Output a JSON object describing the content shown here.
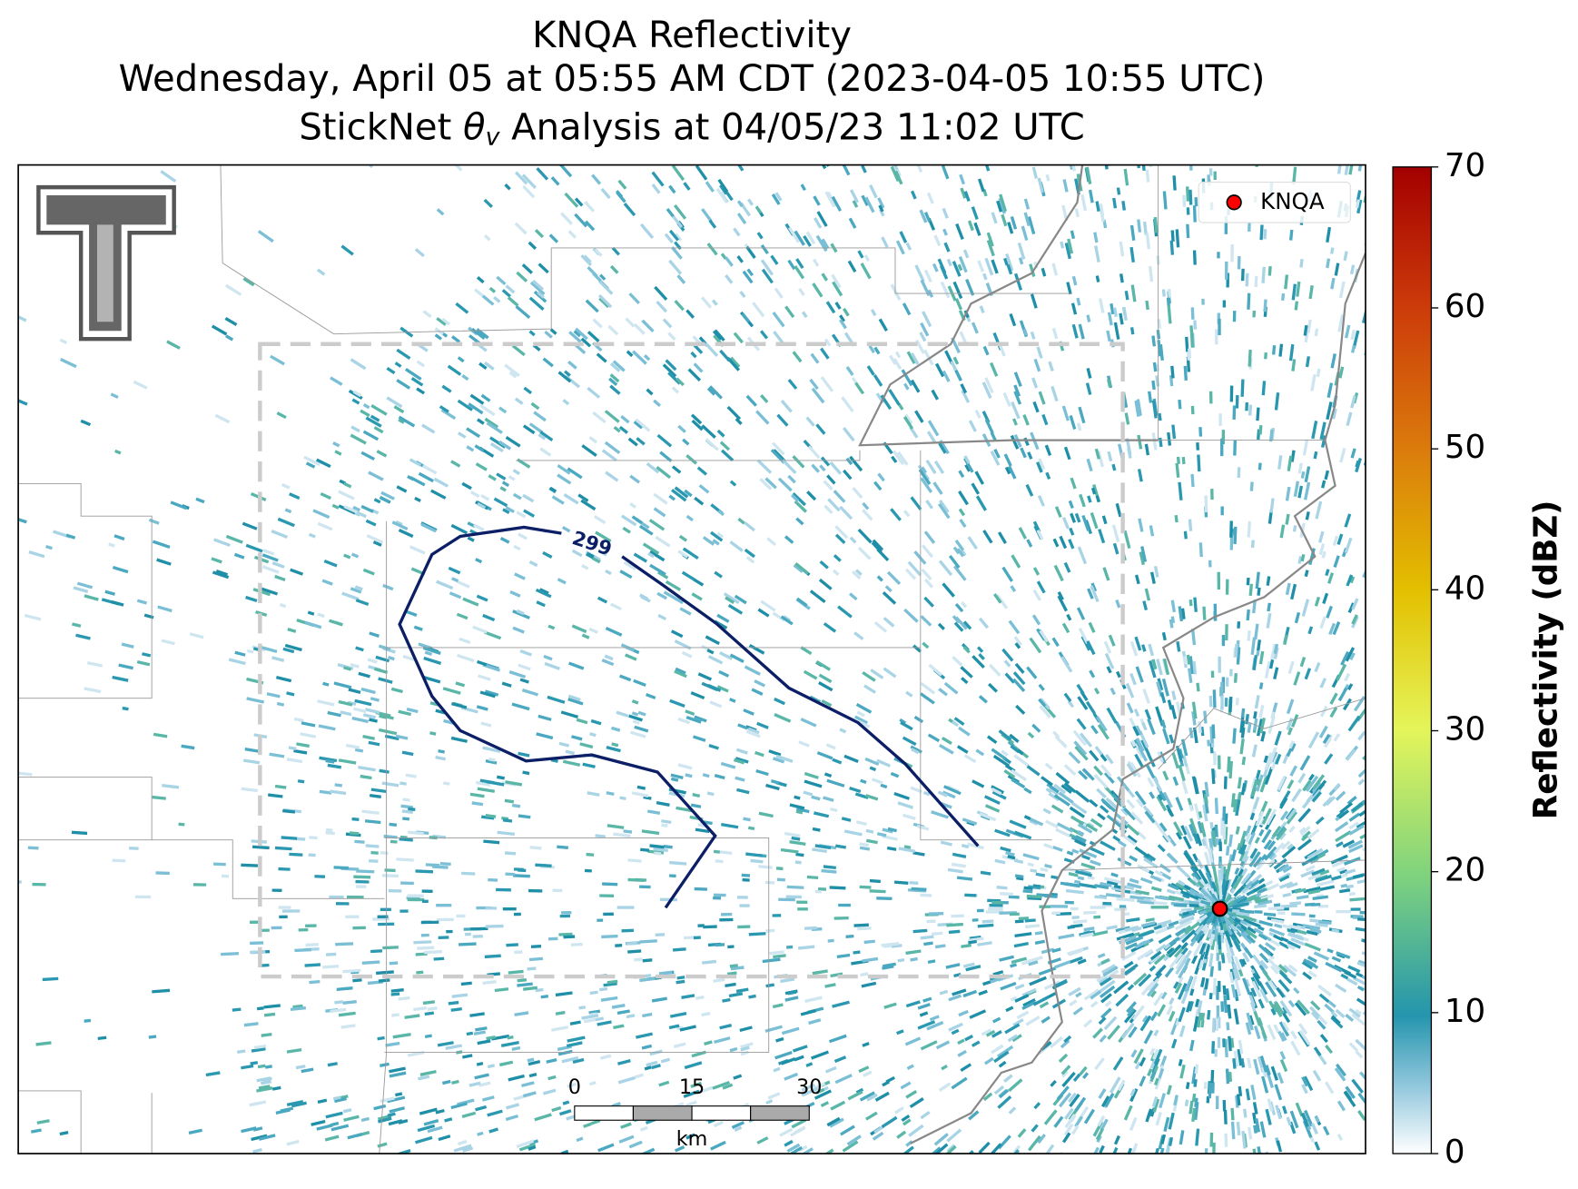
{
  "title": {
    "line1": "KNQA Reflectivity",
    "line2": "Wednesday, April 05 at 05:55 AM CDT (2023-04-05 10:55 UTC)",
    "line3": {
      "before": "StickNet",
      "symbol": "θ",
      "subscript": "v",
      "after": "Analysis at 04/05/23 11:02 UTC"
    }
  },
  "legend": {
    "label": "KNQA"
  },
  "contour_label": "299",
  "colorbar": {
    "label": "Reflectivity (dBZ)",
    "lim": [
      0,
      70
    ],
    "ticks": [
      0,
      10,
      20,
      30,
      40,
      50,
      60,
      70
    ]
  },
  "scale_bar": {
    "ticks": [
      0,
      15,
      30
    ],
    "unit": "km"
  }
}
